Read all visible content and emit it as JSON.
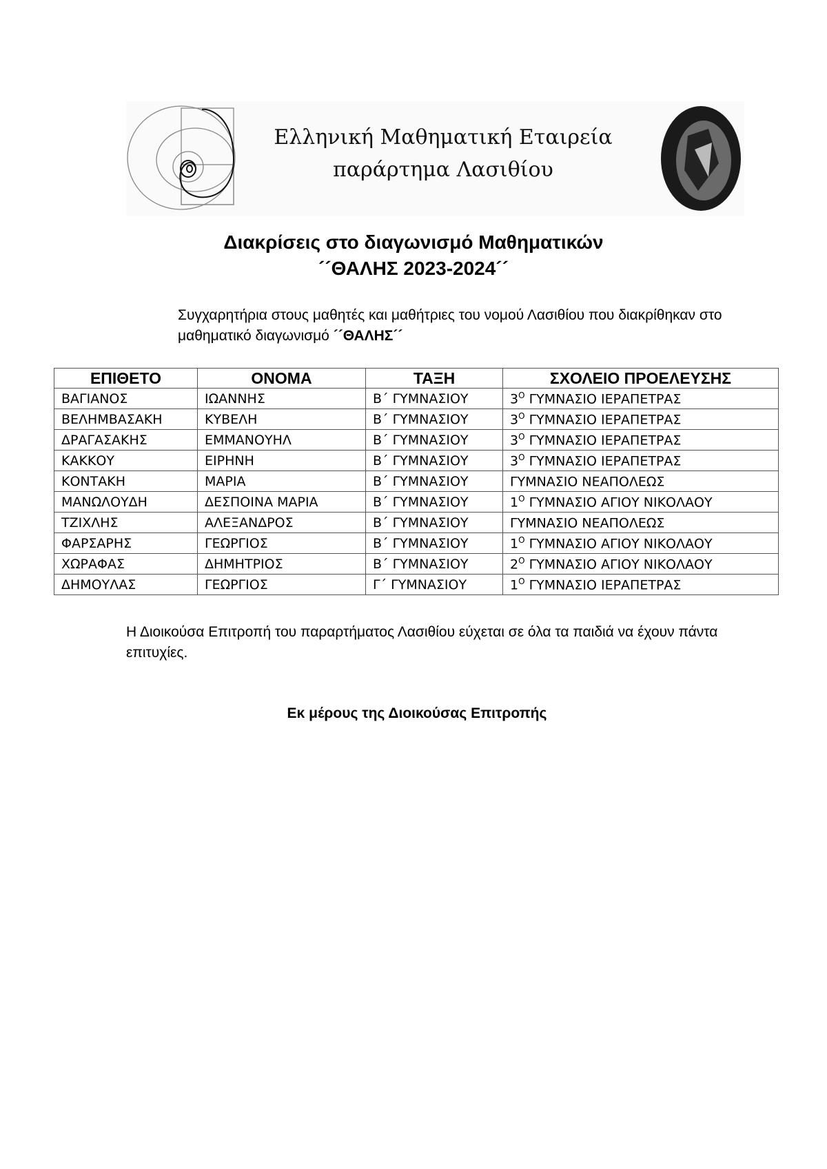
{
  "logo": {
    "line1": "Ελληνική Μαθηματική Εταιρεία",
    "line2": "παράρτημα Λασιθίου"
  },
  "title": {
    "line1": "Διακρίσεις στο διαγωνισμό Μαθηματικών",
    "line2": "´´ΘΑΛΗΣ 2023-2024´´"
  },
  "intro": {
    "text": "Συγχαρητήρια στους μαθητές και μαθήτριες του νομού Λασιθίου που διακρίθηκαν στο μαθηματικό διαγωνισμό ",
    "bold": "´´ΘΑΛΗΣ´´"
  },
  "table": {
    "headers": [
      "ΕΠΙΘΕΤΟ",
      "ΟΝΟΜΑ",
      "ΤΑΞΗ",
      "ΣΧΟΛΕΙΟ ΠΡΟΕΛΕΥΣΗΣ"
    ],
    "rows": [
      {
        "surname": "ΒΑΓΙΑΝΟΣ",
        "name": "ΙΩΑΝΝΗΣ",
        "grade": "Β΄ ΓΥΜΝΑΣΙΟΥ",
        "ord": "3",
        "sup": "Ο",
        "school": " ΓΥΜΝΑΣΙΟ ΙΕΡΑΠΕΤΡΑΣ"
      },
      {
        "surname": "ΒΕΛΗΜΒΑΣΑΚΗ",
        "name": "ΚΥΒΕΛΗ",
        "grade": "Β΄ ΓΥΜΝΑΣΙΟΥ",
        "ord": "3",
        "sup": "Ο",
        "school": " ΓΥΜΝΑΣΙΟ ΙΕΡΑΠΕΤΡΑΣ"
      },
      {
        "surname": "ΔΡΑΓΑΣΑΚΗΣ",
        "name": "ΕΜΜΑΝΟΥΗΛ",
        "grade": "Β΄ ΓΥΜΝΑΣΙΟΥ",
        "ord": "3",
        "sup": "Ο",
        "school": " ΓΥΜΝΑΣΙΟ ΙΕΡΑΠΕΤΡΑΣ"
      },
      {
        "surname": "ΚΑΚΚΟΥ",
        "name": "ΕΙΡΗΝΗ",
        "grade": "Β΄ ΓΥΜΝΑΣΙΟΥ",
        "ord": "3",
        "sup": "Ο",
        "school": " ΓΥΜΝΑΣΙΟ ΙΕΡΑΠΕΤΡΑΣ"
      },
      {
        "surname": "ΚΟΝΤΑΚΗ",
        "name": "ΜΑΡΙΑ",
        "grade": "Β΄ ΓΥΜΝΑΣΙΟΥ",
        "ord": "",
        "sup": "",
        "school": "ΓΥΜΝΑΣΙΟ ΝΕΑΠΟΛΕΩΣ"
      },
      {
        "surname": "ΜΑΝΩΛΟΥΔΗ",
        "name": "ΔΕΣΠΟΙΝΑ ΜΑΡΙΑ",
        "grade": "Β΄ ΓΥΜΝΑΣΙΟΥ",
        "ord": "1",
        "sup": "Ο",
        "school": " ΓΥΜΝΑΣΙΟ ΑΓΙΟΥ ΝΙΚΟΛΑΟΥ"
      },
      {
        "surname": "ΤΖΙΧΛΗΣ",
        "name": "ΑΛΕΞΑΝΔΡΟΣ",
        "grade": "Β΄ ΓΥΜΝΑΣΙΟΥ",
        "ord": "",
        "sup": "",
        "school": "ΓΥΜΝΑΣΙΟ ΝΕΑΠΟΛΕΩΣ"
      },
      {
        "surname": "ΦΑΡΣΑΡΗΣ",
        "name": "ΓΕΩΡΓΙΟΣ",
        "grade": "Β΄ ΓΥΜΝΑΣΙΟΥ",
        "ord": "1",
        "sup": "Ο",
        "school": " ΓΥΜΝΑΣΙΟ ΑΓΙΟΥ ΝΙΚΟΛΑΟΥ"
      },
      {
        "surname": "ΧΩΡΑΦΑΣ",
        "name": "ΔΗΜΗΤΡΙΟΣ",
        "grade": "Β΄ ΓΥΜΝΑΣΙΟΥ",
        "ord": "2",
        "sup": "Ο",
        "school": " ΓΥΜΝΑΣΙΟ ΑΓΙΟΥ ΝΙΚΟΛΑΟΥ"
      },
      {
        "surname": "ΔΗΜΟΥΛΑΣ",
        "name": "ΓΕΩΡΓΙΟΣ",
        "grade": "Γ΄ ΓΥΜΝΑΣΙΟΥ",
        "ord": "1",
        "sup": "Ο",
        "school": " ΓΥΜΝΑΣΙΟ ΙΕΡΑΠΕΤΡΑΣ"
      }
    ]
  },
  "footer": {
    "text": "Η Διοικούσα Επιτροπή του παραρτήματος Λασιθίου εύχεται σε όλα τα παιδιά να έχουν πάντα επιτυχίες."
  },
  "signature": "Εκ μέρους της Διοικούσας Επιτροπής"
}
